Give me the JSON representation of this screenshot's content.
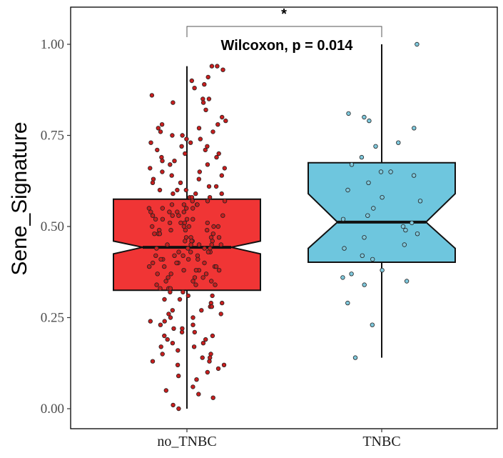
{
  "chart_data": {
    "type": "boxplot",
    "title": "",
    "xlabel": "",
    "ylabel": "Sene_Signature",
    "ylim": [
      -0.005,
      1.09
    ],
    "yticks": [
      "0.00",
      "0.25",
      "0.50",
      "0.75",
      "1.00"
    ],
    "ytick_values": [
      0,
      0.25,
      0.5,
      0.75,
      1.0
    ],
    "categories": [
      "no_TNBC",
      "TNBC"
    ],
    "grid": false,
    "notched": true,
    "series": [
      {
        "category": "no_TNBC",
        "fill": "#f03535",
        "point_fill": "#c81e1e",
        "min": 0.0,
        "q1": 0.325,
        "median": 0.443,
        "q3": 0.575,
        "max": 0.94,
        "notch_low": 0.425,
        "notch_high": 0.46,
        "points": [
          0.94,
          0.94,
          0.93,
          0.91,
          0.9,
          0.89,
          0.88,
          0.86,
          0.85,
          0.85,
          0.84,
          0.84,
          0.82,
          0.8,
          0.79,
          0.78,
          0.78,
          0.77,
          0.77,
          0.76,
          0.76,
          0.75,
          0.75,
          0.74,
          0.74,
          0.73,
          0.73,
          0.72,
          0.72,
          0.71,
          0.71,
          0.7,
          0.7,
          0.69,
          0.69,
          0.68,
          0.68,
          0.67,
          0.67,
          0.66,
          0.66,
          0.65,
          0.65,
          0.64,
          0.64,
          0.63,
          0.63,
          0.62,
          0.62,
          0.61,
          0.61,
          0.6,
          0.6,
          0.6,
          0.59,
          0.59,
          0.59,
          0.58,
          0.58,
          0.58,
          0.57,
          0.57,
          0.57,
          0.56,
          0.56,
          0.56,
          0.56,
          0.55,
          0.55,
          0.55,
          0.55,
          0.54,
          0.54,
          0.54,
          0.54,
          0.53,
          0.53,
          0.53,
          0.53,
          0.52,
          0.52,
          0.52,
          0.52,
          0.51,
          0.51,
          0.51,
          0.51,
          0.5,
          0.5,
          0.5,
          0.5,
          0.5,
          0.49,
          0.49,
          0.49,
          0.49,
          0.48,
          0.48,
          0.48,
          0.48,
          0.47,
          0.47,
          0.47,
          0.47,
          0.46,
          0.46,
          0.46,
          0.46,
          0.45,
          0.45,
          0.45,
          0.45,
          0.45,
          0.44,
          0.44,
          0.44,
          0.44,
          0.43,
          0.43,
          0.43,
          0.43,
          0.42,
          0.42,
          0.42,
          0.42,
          0.41,
          0.41,
          0.41,
          0.41,
          0.4,
          0.4,
          0.4,
          0.4,
          0.39,
          0.39,
          0.39,
          0.39,
          0.38,
          0.38,
          0.38,
          0.38,
          0.37,
          0.37,
          0.37,
          0.36,
          0.36,
          0.36,
          0.35,
          0.35,
          0.35,
          0.34,
          0.34,
          0.34,
          0.33,
          0.33,
          0.33,
          0.32,
          0.32,
          0.31,
          0.31,
          0.3,
          0.3,
          0.29,
          0.29,
          0.28,
          0.28,
          0.27,
          0.27,
          0.26,
          0.26,
          0.25,
          0.25,
          0.24,
          0.24,
          0.23,
          0.23,
          0.22,
          0.22,
          0.21,
          0.21,
          0.2,
          0.2,
          0.19,
          0.19,
          0.18,
          0.18,
          0.17,
          0.17,
          0.16,
          0.15,
          0.15,
          0.14,
          0.14,
          0.13,
          0.13,
          0.12,
          0.12,
          0.11,
          0.1,
          0.09,
          0.08,
          0.06,
          0.05,
          0.04,
          0.03,
          0.01,
          0.0
        ]
      },
      {
        "category": "TNBC",
        "fill": "#6ec6de",
        "point_fill": "#7fc8dc",
        "min": 0.14,
        "q1": 0.402,
        "median": 0.512,
        "q3": 0.675,
        "max": 1.0,
        "notch_low": 0.44,
        "notch_high": 0.59,
        "points": [
          1.0,
          0.81,
          0.8,
          0.79,
          0.77,
          0.73,
          0.72,
          0.69,
          0.67,
          0.65,
          0.65,
          0.64,
          0.62,
          0.6,
          0.58,
          0.57,
          0.55,
          0.53,
          0.52,
          0.51,
          0.5,
          0.49,
          0.48,
          0.47,
          0.45,
          0.44,
          0.42,
          0.41,
          0.38,
          0.37,
          0.36,
          0.35,
          0.34,
          0.29,
          0.23,
          0.14
        ]
      }
    ],
    "annotation": {
      "test_label": "Wilcoxon, p = 0.014",
      "significance_marker": "*"
    }
  }
}
